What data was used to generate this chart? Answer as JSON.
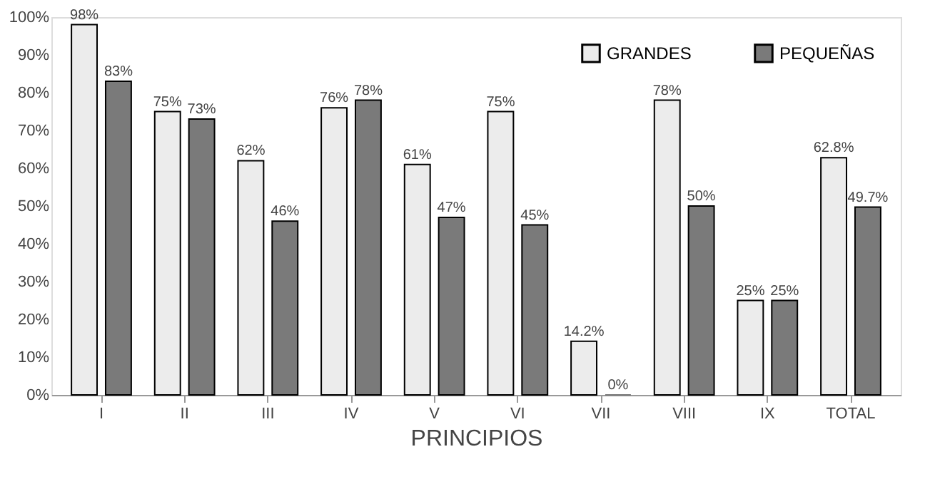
{
  "chart_data": {
    "type": "bar",
    "xlabel": "PRINCIPIOS",
    "categories": [
      "I",
      "II",
      "III",
      "IV",
      "V",
      "VI",
      "VII",
      "VIII",
      "IX",
      "TOTAL"
    ],
    "series": [
      {
        "name": "GRANDES",
        "color": "#ececec",
        "values": [
          98,
          75,
          62,
          76,
          61,
          75,
          14.2,
          78,
          25,
          62.8
        ],
        "value_labels": [
          "98%",
          "75%",
          "62%",
          "76%",
          "61%",
          "75%",
          "14.2%",
          "78%",
          "25%",
          "62.8%"
        ]
      },
      {
        "name": "PEQUEÑAS",
        "color": "#7a7a7a",
        "values": [
          83,
          73,
          46,
          78,
          47,
          45,
          0,
          50,
          25,
          49.7
        ],
        "value_labels": [
          "83%",
          "73%",
          "46%",
          "78%",
          "47%",
          "45%",
          "0%",
          "50%",
          "25%",
          "49.7%"
        ]
      }
    ],
    "ylim": [
      0,
      100
    ],
    "yticks": [
      {
        "value": 0,
        "label": "0%"
      },
      {
        "value": 10,
        "label": "10%"
      },
      {
        "value": 20,
        "label": "20%"
      },
      {
        "value": 30,
        "label": "30%"
      },
      {
        "value": 40,
        "label": "40%"
      },
      {
        "value": 50,
        "label": "50%"
      },
      {
        "value": 60,
        "label": "60%"
      },
      {
        "value": 70,
        "label": "70%"
      },
      {
        "value": 80,
        "label": "80%"
      },
      {
        "value": 90,
        "label": "90%"
      },
      {
        "value": 100,
        "label": "100%"
      }
    ],
    "grid": false,
    "legend": "top right"
  }
}
